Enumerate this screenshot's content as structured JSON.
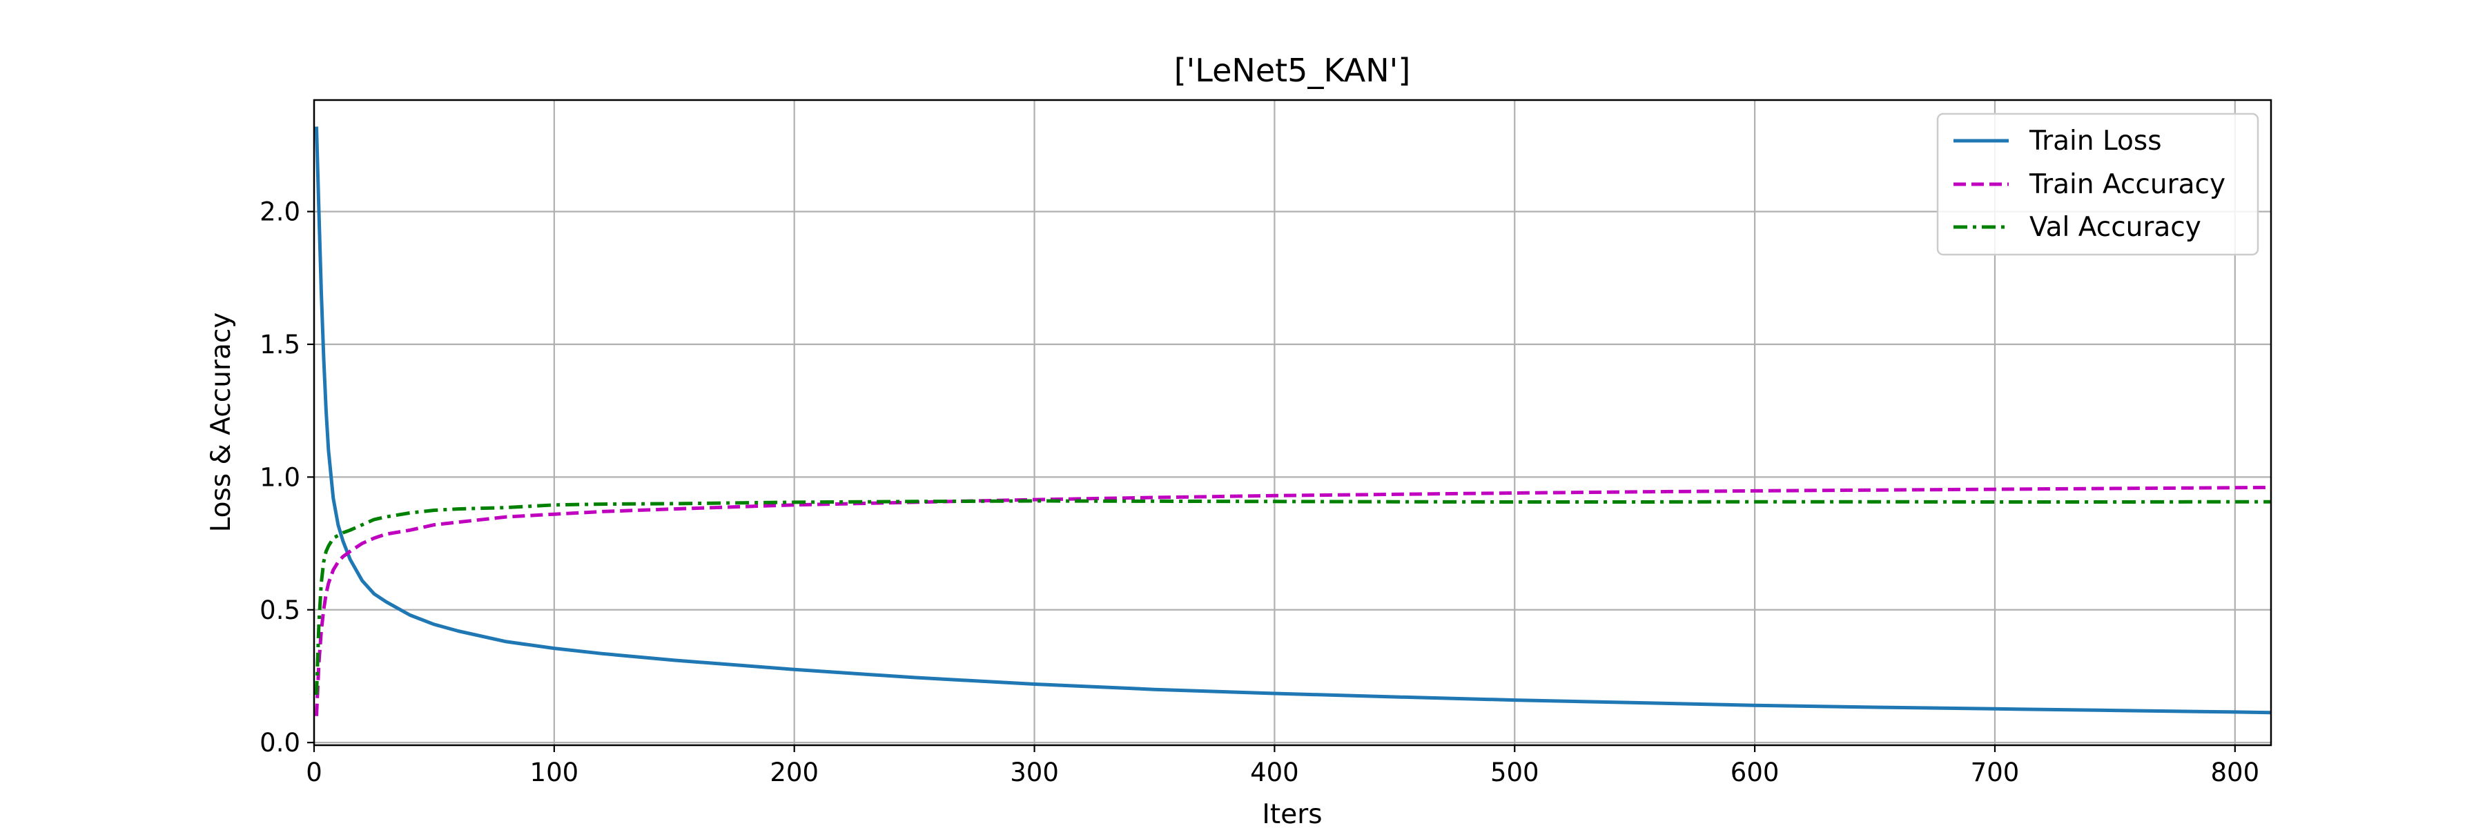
{
  "chart_data": {
    "type": "line",
    "title": "['LeNet5_KAN']",
    "xlabel": "Iters",
    "ylabel": "Loss & Accuracy",
    "xlim": [
      0,
      815
    ],
    "ylim": [
      -0.01,
      2.42
    ],
    "xticks": [
      0,
      100,
      200,
      300,
      400,
      500,
      600,
      700,
      800
    ],
    "yticks": [
      0.0,
      0.5,
      1.0,
      1.5,
      2.0
    ],
    "xtick_labels": [
      "0",
      "100",
      "200",
      "300",
      "400",
      "500",
      "600",
      "700",
      "800"
    ],
    "ytick_labels": [
      "0.0",
      "0.5",
      "1.0",
      "1.5",
      "2.0"
    ],
    "grid": true,
    "legend_position": "top-right",
    "series": [
      {
        "name": "Train Loss",
        "color": "#1f77b4",
        "dash": "solid",
        "x": [
          1,
          2,
          3,
          4,
          5,
          6,
          8,
          10,
          12,
          15,
          20,
          25,
          30,
          40,
          50,
          60,
          80,
          100,
          120,
          150,
          200,
          250,
          300,
          350,
          400,
          450,
          500,
          550,
          600,
          650,
          700,
          750,
          800,
          815
        ],
        "y": [
          2.32,
          2.0,
          1.7,
          1.45,
          1.25,
          1.1,
          0.92,
          0.82,
          0.76,
          0.69,
          0.61,
          0.56,
          0.53,
          0.48,
          0.445,
          0.42,
          0.38,
          0.355,
          0.335,
          0.31,
          0.275,
          0.245,
          0.22,
          0.2,
          0.185,
          0.172,
          0.16,
          0.15,
          0.14,
          0.133,
          0.127,
          0.121,
          0.115,
          0.113
        ]
      },
      {
        "name": "Train Accuracy",
        "color": "#bf00bf",
        "dash": "dashed",
        "x": [
          1,
          2,
          3,
          4,
          5,
          6,
          8,
          10,
          12,
          15,
          20,
          25,
          30,
          40,
          50,
          60,
          80,
          100,
          120,
          150,
          200,
          250,
          300,
          350,
          400,
          450,
          500,
          550,
          600,
          650,
          700,
          750,
          800,
          815
        ],
        "y": [
          0.1,
          0.3,
          0.42,
          0.5,
          0.56,
          0.6,
          0.65,
          0.68,
          0.7,
          0.72,
          0.75,
          0.77,
          0.785,
          0.8,
          0.82,
          0.83,
          0.85,
          0.86,
          0.87,
          0.88,
          0.895,
          0.905,
          0.915,
          0.923,
          0.93,
          0.935,
          0.94,
          0.944,
          0.948,
          0.951,
          0.954,
          0.957,
          0.96,
          0.961
        ]
      },
      {
        "name": "Val Accuracy",
        "color": "#008000",
        "dash": "dashdot",
        "x": [
          1,
          2,
          3,
          4,
          5,
          6,
          8,
          10,
          12,
          15,
          20,
          25,
          30,
          40,
          50,
          60,
          80,
          100,
          120,
          150,
          200,
          250,
          300,
          350,
          400,
          450,
          500,
          550,
          600,
          650,
          700,
          750,
          800,
          815
        ],
        "y": [
          0.18,
          0.45,
          0.6,
          0.68,
          0.72,
          0.74,
          0.77,
          0.78,
          0.79,
          0.8,
          0.82,
          0.84,
          0.85,
          0.865,
          0.875,
          0.88,
          0.885,
          0.895,
          0.898,
          0.9,
          0.905,
          0.908,
          0.91,
          0.909,
          0.908,
          0.907,
          0.906,
          0.906,
          0.907,
          0.907,
          0.906,
          0.906,
          0.907,
          0.907
        ]
      }
    ]
  }
}
